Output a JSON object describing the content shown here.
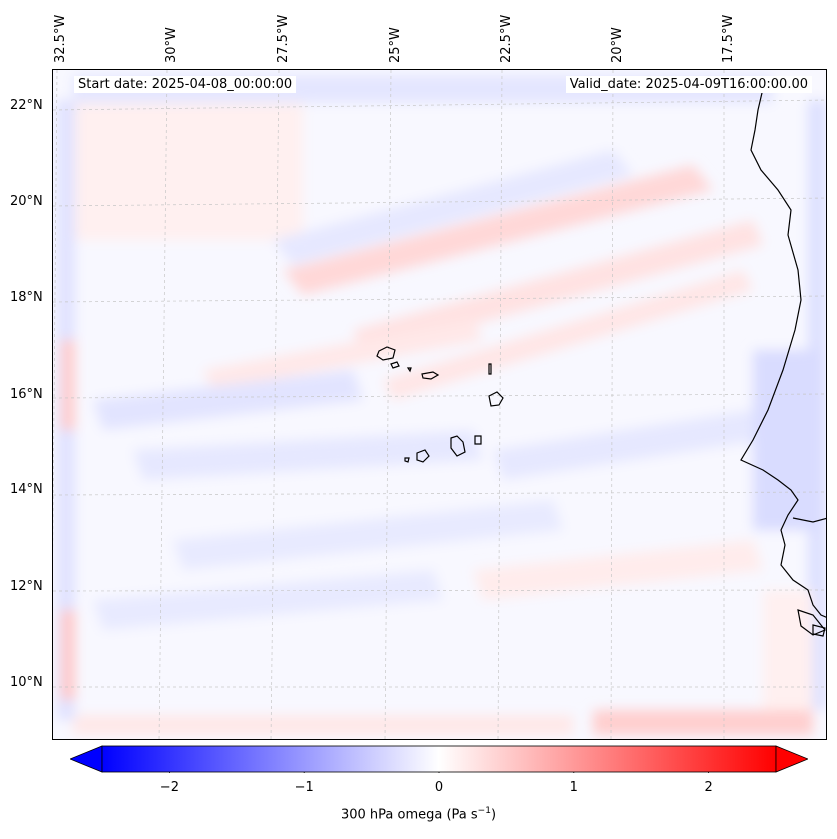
{
  "header": {
    "start_date": "Start date: 2025-04-08_00:00:00",
    "valid_date": "Valid_date: 2025-04-09T16:00:00.00"
  },
  "longitude_labels": [
    "32.5°W",
    "30°W",
    "27.5°W",
    "25°W",
    "22.5°W",
    "20°W",
    "17.5°W"
  ],
  "latitude_labels": [
    "22°N",
    "20°N",
    "18°N",
    "16°N",
    "14°N",
    "12°N",
    "10°N"
  ],
  "colorbar": {
    "title_prefix": "300 hPa omega (Pa s",
    "title_sup": "−1",
    "title_suffix": ")",
    "ticks": [
      "−2",
      "−1",
      "0",
      "1",
      "2"
    ],
    "tick_values": [
      -2,
      -1,
      0,
      1,
      2
    ],
    "min": -2.5,
    "max": 2.5,
    "low_color": "#0000ff",
    "mid_color": "#ffffff",
    "high_color": "#ff0000"
  },
  "colors": {
    "frame": "#000000",
    "grid": "#bbbbbb",
    "coast": "#000000"
  }
}
